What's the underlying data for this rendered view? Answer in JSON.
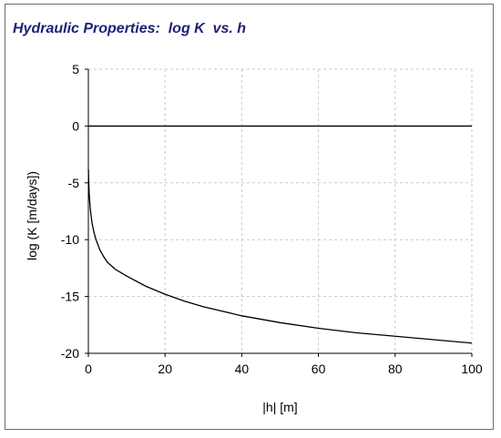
{
  "chart_data": {
    "type": "line",
    "title": "Hydraulic Properties:  log K  vs. h",
    "xlabel": "|h| [m]",
    "ylabel": "log (K [m/days])",
    "xlim": [
      0,
      100
    ],
    "ylim": [
      -20,
      5
    ],
    "xticks": [
      0,
      20,
      40,
      60,
      80,
      100
    ],
    "yticks": [
      5,
      0,
      -5,
      -10,
      -15,
      -20
    ],
    "grid": true,
    "grid_style": "dashed",
    "zero_line": true,
    "series": [
      {
        "color": "#000000",
        "x": [
          0.01,
          0.05,
          0.1,
          0.2,
          0.3,
          0.5,
          0.75,
          1,
          1.5,
          2,
          3,
          4,
          5,
          7,
          10,
          15,
          20,
          25,
          30,
          40,
          50,
          60,
          70,
          80,
          90,
          100
        ],
        "y": [
          -3.8,
          -4.3,
          -5.0,
          -5.8,
          -6.4,
          -7.3,
          -8.0,
          -8.6,
          -9.4,
          -10.0,
          -10.9,
          -11.5,
          -12.0,
          -12.6,
          -13.2,
          -14.1,
          -14.8,
          -15.4,
          -15.9,
          -16.7,
          -17.3,
          -17.8,
          -18.2,
          -18.5,
          -18.8,
          -19.1
        ]
      }
    ]
  }
}
